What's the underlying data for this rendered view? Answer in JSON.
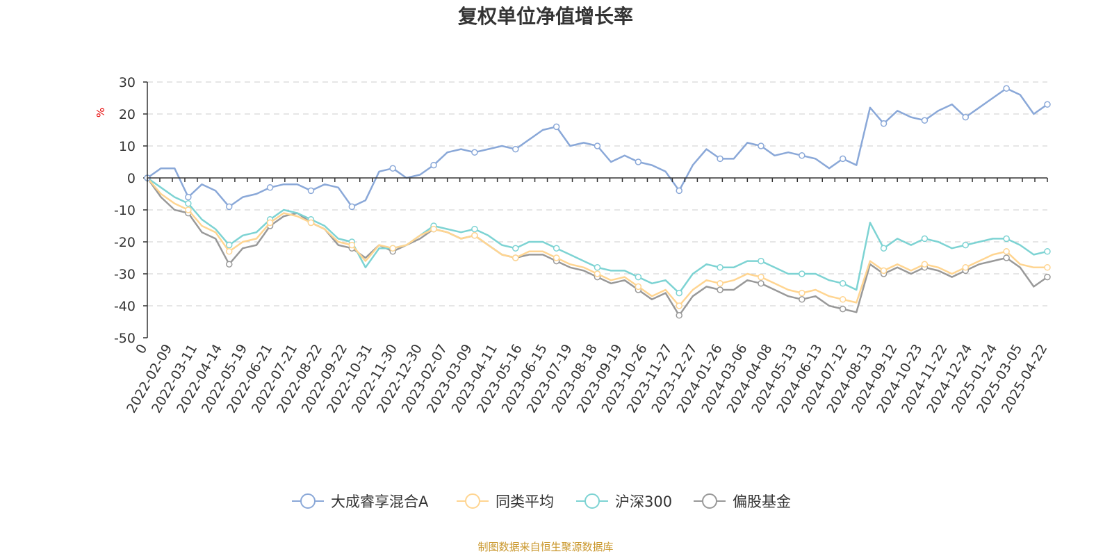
{
  "chart_data": {
    "type": "line",
    "title": "复权单位净值增长率",
    "ylabel": "%",
    "ylim": [
      -50,
      30
    ],
    "yticks": [
      30,
      20,
      10,
      0,
      -10,
      -20,
      -30,
      -40,
      -50
    ],
    "x_labels": [
      "0",
      "2022-02-09",
      "2022-03-11",
      "2022-04-14",
      "2022-05-19",
      "2022-06-21",
      "2022-07-21",
      "2022-08-22",
      "2022-09-22",
      "2022-10-31",
      "2022-11-30",
      "2022-12-30",
      "2023-02-07",
      "2023-03-09",
      "2023-04-11",
      "2023-05-16",
      "2023-06-15",
      "2023-07-19",
      "2023-08-18",
      "2023-09-19",
      "2023-10-26",
      "2023-11-27",
      "2023-12-27",
      "2024-01-26",
      "2024-03-06",
      "2024-04-08",
      "2024-05-13",
      "2024-06-13",
      "2024-07-12",
      "2024-08-13",
      "2024-09-12",
      "2024-10-23",
      "2024-11-22",
      "2024-12-24",
      "2025-01-24",
      "2025-03-05",
      "2025-04-22"
    ],
    "grid": true,
    "legend_position": "bottom",
    "source_note": "制图数据来自恒生聚源数据库",
    "series": [
      {
        "name": "大成睿享混合A",
        "color": "#8aa8d8",
        "values": [
          0,
          3,
          3,
          -6,
          -2,
          -4,
          -9,
          -6,
          -5,
          -3,
          -2,
          -2,
          -4,
          -2,
          -3,
          -9,
          -7,
          2,
          3,
          0,
          1,
          4,
          8,
          9,
          8,
          9,
          10,
          9,
          12,
          15,
          16,
          10,
          11,
          10,
          5,
          7,
          5,
          4,
          2,
          -4,
          4,
          9,
          6,
          6,
          11,
          10,
          7,
          8,
          7,
          6,
          3,
          6,
          4,
          22,
          17,
          21,
          19,
          18,
          21,
          23,
          19,
          22,
          25,
          28,
          26,
          20,
          23
        ]
      },
      {
        "name": "同类平均",
        "color": "#ffd591",
        "values": [
          0,
          -5,
          -8,
          -10,
          -15,
          -17,
          -23,
          -20,
          -19,
          -14,
          -11,
          -12,
          -14,
          -16,
          -20,
          -21,
          -26,
          -21,
          -22,
          -21,
          -18,
          -16,
          -17,
          -19,
          -18,
          -21,
          -24,
          -25,
          -23,
          -23,
          -25,
          -27,
          -28,
          -30,
          -32,
          -31,
          -34,
          -37,
          -35,
          -40,
          -35,
          -32,
          -33,
          -32,
          -30,
          -31,
          -33,
          -35,
          -36,
          -35,
          -37,
          -38,
          -39,
          -26,
          -29,
          -27,
          -29,
          -27,
          -28,
          -30,
          -28,
          -26,
          -24,
          -23,
          -27,
          -28,
          -28
        ]
      },
      {
        "name": "沪深300",
        "color": "#7dd3d3",
        "values": [
          0,
          -3,
          -6,
          -8,
          -13,
          -16,
          -21,
          -18,
          -17,
          -13,
          -10,
          -11,
          -13,
          -15,
          -19,
          -20,
          -28,
          -22,
          -22,
          -21,
          -18,
          -15,
          -16,
          -17,
          -16,
          -18,
          -21,
          -22,
          -20,
          -20,
          -22,
          -24,
          -26,
          -28,
          -29,
          -29,
          -31,
          -33,
          -32,
          -36,
          -30,
          -27,
          -28,
          -28,
          -26,
          -26,
          -28,
          -30,
          -30,
          -30,
          -32,
          -33,
          -35,
          -14,
          -22,
          -19,
          -21,
          -19,
          -20,
          -22,
          -21,
          -20,
          -19,
          -19,
          -21,
          -24,
          -23
        ]
      },
      {
        "name": "偏股基金",
        "color": "#999999",
        "values": [
          0,
          -6,
          -10,
          -11,
          -17,
          -19,
          -27,
          -22,
          -21,
          -15,
          -12,
          -11,
          -14,
          -16,
          -21,
          -22,
          -25,
          -21,
          -23,
          -21,
          -19,
          -16,
          -17,
          -19,
          -18,
          -21,
          -24,
          -25,
          -24,
          -24,
          -26,
          -28,
          -29,
          -31,
          -33,
          -32,
          -35,
          -38,
          -36,
          -43,
          -37,
          -34,
          -35,
          -35,
          -32,
          -33,
          -35,
          -37,
          -38,
          -37,
          -40,
          -41,
          -42,
          -27,
          -30,
          -28,
          -30,
          -28,
          -29,
          -31,
          -29,
          -27,
          -26,
          -25,
          -28,
          -34,
          -31
        ]
      }
    ]
  }
}
